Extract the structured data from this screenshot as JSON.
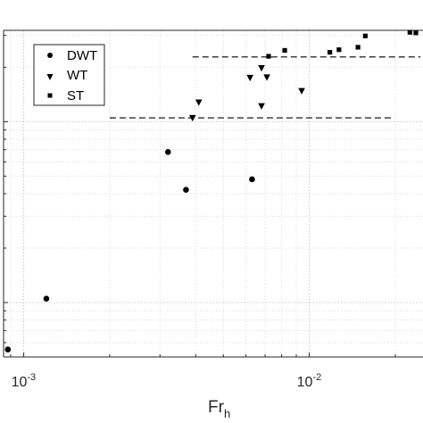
{
  "chart_data": {
    "type": "scatter",
    "title": "",
    "xlabel": {
      "main": "Fr",
      "subscript": "h"
    },
    "ylabel": "",
    "x_scale": "log",
    "y_scale": "log",
    "xlim": [
      0.00085,
      0.025
    ],
    "ylim": [
      0.5,
      32
    ],
    "x_ticks": [
      {
        "value": 0.001,
        "base": "10",
        "exponent": "-3"
      },
      {
        "value": 0.01,
        "base": "10",
        "exponent": "-2"
      }
    ],
    "grid": true,
    "legend_position": "top-left",
    "series": [
      {
        "name": "DWT",
        "marker": "circle",
        "points": [
          [
            0.00088,
            0.55
          ],
          [
            0.0012,
            1.05
          ],
          [
            0.0032,
            6.8
          ],
          [
            0.0037,
            4.2
          ],
          [
            0.0063,
            4.8
          ]
        ]
      },
      {
        "name": "WT",
        "marker": "triangle-down",
        "points": [
          [
            0.0039,
            10.5
          ],
          [
            0.0041,
            12.8
          ],
          [
            0.0062,
            17.5
          ],
          [
            0.0068,
            19.8
          ],
          [
            0.0071,
            17.6
          ],
          [
            0.0068,
            12.2
          ],
          [
            0.0094,
            14.8
          ]
        ]
      },
      {
        "name": "ST",
        "marker": "square",
        "points": [
          [
            0.0072,
            23.0
          ],
          [
            0.0082,
            24.8
          ],
          [
            0.0118,
            24.2
          ],
          [
            0.0127,
            25.0
          ],
          [
            0.0148,
            25.8
          ],
          [
            0.0157,
            29.8
          ],
          [
            0.0225,
            31.2
          ],
          [
            0.0236,
            31.0
          ]
        ]
      }
    ],
    "reference_lines": [
      {
        "x": [
          0.002,
          0.0195
        ],
        "y": 10.5,
        "style": "dashed"
      },
      {
        "x": [
          0.0039,
          0.0245
        ],
        "y": 22.8,
        "style": "dashed"
      }
    ]
  }
}
